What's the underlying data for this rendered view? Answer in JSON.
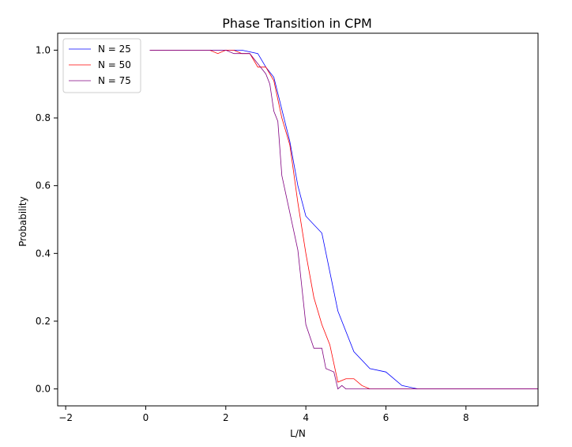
{
  "chart_data": {
    "type": "line",
    "title": "Phase Transition in CPM",
    "xlabel": "L/N",
    "ylabel": "Probability",
    "xlim": [
      -2.2,
      9.8
    ],
    "ylim": [
      -0.05,
      1.05
    ],
    "xticks": [
      -2,
      0,
      2,
      4,
      6,
      8
    ],
    "xtick_labels": [
      "−2",
      "0",
      "2",
      "4",
      "6",
      "8"
    ],
    "yticks": [
      0.0,
      0.2,
      0.4,
      0.6,
      0.8,
      1.0
    ],
    "ytick_labels": [
      "0.0",
      "0.2",
      "0.4",
      "0.6",
      "0.8",
      "1.0"
    ],
    "grid": false,
    "legend_position": "top-left",
    "series": [
      {
        "name": "N = 25",
        "color": "#0000ff",
        "points": [
          [
            0.1,
            1.0
          ],
          [
            1.6,
            1.0
          ],
          [
            2.0,
            1.0
          ],
          [
            2.4,
            1.0
          ],
          [
            2.8,
            0.99
          ],
          [
            3.0,
            0.95
          ],
          [
            3.2,
            0.92
          ],
          [
            3.6,
            0.73
          ],
          [
            3.8,
            0.6
          ],
          [
            4.0,
            0.51
          ],
          [
            4.4,
            0.46
          ],
          [
            4.8,
            0.23
          ],
          [
            5.2,
            0.11
          ],
          [
            5.6,
            0.06
          ],
          [
            6.0,
            0.05
          ],
          [
            6.4,
            0.01
          ],
          [
            6.8,
            0.0
          ],
          [
            8.0,
            0.0
          ],
          [
            9.8,
            0.0
          ]
        ]
      },
      {
        "name": "N = 50",
        "color": "#ff0000",
        "points": [
          [
            0.1,
            1.0
          ],
          [
            1.6,
            1.0
          ],
          [
            1.8,
            0.99
          ],
          [
            2.0,
            1.0
          ],
          [
            2.2,
            1.0
          ],
          [
            2.4,
            0.99
          ],
          [
            2.6,
            0.99
          ],
          [
            2.8,
            0.95
          ],
          [
            3.0,
            0.95
          ],
          [
            3.2,
            0.91
          ],
          [
            3.4,
            0.8
          ],
          [
            3.6,
            0.72
          ],
          [
            3.8,
            0.55
          ],
          [
            4.0,
            0.4
          ],
          [
            4.2,
            0.27
          ],
          [
            4.4,
            0.19
          ],
          [
            4.6,
            0.13
          ],
          [
            4.8,
            0.02
          ],
          [
            5.0,
            0.03
          ],
          [
            5.2,
            0.03
          ],
          [
            5.4,
            0.01
          ],
          [
            5.6,
            0.0
          ],
          [
            8.0,
            0.0
          ],
          [
            9.8,
            0.0
          ]
        ]
      },
      {
        "name": "N = 75",
        "color": "#800080",
        "points": [
          [
            0.1,
            1.0
          ],
          [
            1.8,
            1.0
          ],
          [
            2.0,
            1.0
          ],
          [
            2.2,
            0.99
          ],
          [
            2.4,
            0.99
          ],
          [
            2.6,
            0.99
          ],
          [
            2.8,
            0.96
          ],
          [
            3.0,
            0.93
          ],
          [
            3.1,
            0.9
          ],
          [
            3.2,
            0.82
          ],
          [
            3.3,
            0.79
          ],
          [
            3.4,
            0.63
          ],
          [
            3.6,
            0.52
          ],
          [
            3.8,
            0.41
          ],
          [
            3.9,
            0.3
          ],
          [
            4.0,
            0.19
          ],
          [
            4.2,
            0.12
          ],
          [
            4.4,
            0.12
          ],
          [
            4.5,
            0.06
          ],
          [
            4.7,
            0.05
          ],
          [
            4.8,
            0.0
          ],
          [
            4.9,
            0.01
          ],
          [
            5.0,
            0.0
          ],
          [
            8.0,
            0.0
          ],
          [
            9.8,
            0.0
          ]
        ]
      }
    ]
  }
}
